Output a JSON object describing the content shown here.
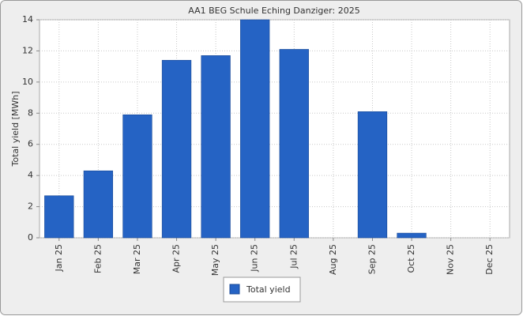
{
  "chart_data": {
    "type": "bar",
    "title": "AA1 BEG Schule Eching Danziger: 2025",
    "y_label": "Total yield [MWh]",
    "categories": [
      "Jan 25",
      "Feb 25",
      "Mar 25",
      "Apr 25",
      "May 25",
      "Jun 25",
      "Jul 25",
      "Aug 25",
      "Sep 25",
      "Oct 25",
      "Nov 25",
      "Dec 25"
    ],
    "series": [
      {
        "name": "Total yield",
        "color": "#2563c4",
        "values": [
          2.7,
          4.3,
          7.9,
          11.4,
          11.7,
          14.0,
          12.1,
          0,
          8.1,
          0.3,
          0,
          0
        ]
      }
    ],
    "ylim": [
      0,
      14
    ],
    "yticks": [
      0,
      2,
      4,
      6,
      8,
      10,
      12,
      14
    ],
    "grid": true,
    "legend": "bottom"
  }
}
